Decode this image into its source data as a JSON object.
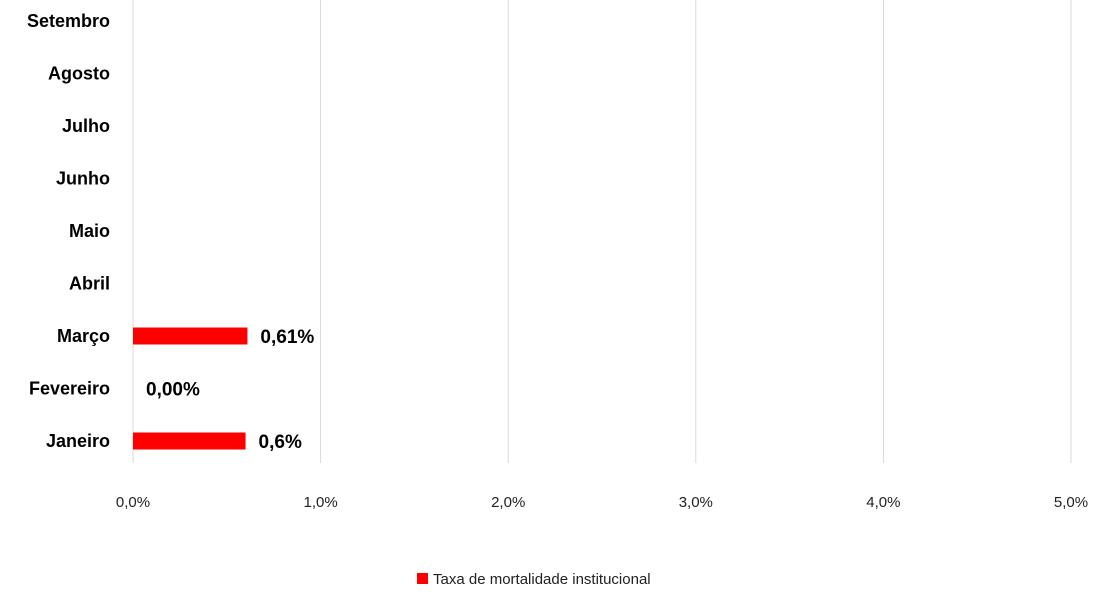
{
  "chart_data": {
    "type": "bar",
    "orientation": "horizontal",
    "categories": [
      "Janeiro",
      "Fevereiro",
      "Março",
      "Abril",
      "Maio",
      "Junho",
      "Julho",
      "Agosto",
      "Setembro"
    ],
    "series": [
      {
        "name": "Taxa de mortalidade institucional",
        "values": [
          0.6,
          0.0,
          0.61,
          null,
          null,
          null,
          null,
          null,
          null
        ],
        "data_labels": [
          "0,6%",
          "0,00%",
          "0,61%",
          "",
          "",
          "",
          "",
          "",
          ""
        ],
        "color": "#ff0000"
      }
    ],
    "xlim": [
      0,
      5
    ],
    "x_ticks": [
      "0,0%",
      "1,0%",
      "2,0%",
      "3,0%",
      "4,0%",
      "5,0%"
    ],
    "grid": "vertical",
    "legend_position": "bottom"
  },
  "colors": {
    "bar": "#ff0000",
    "grid": "#d9d9d9"
  }
}
